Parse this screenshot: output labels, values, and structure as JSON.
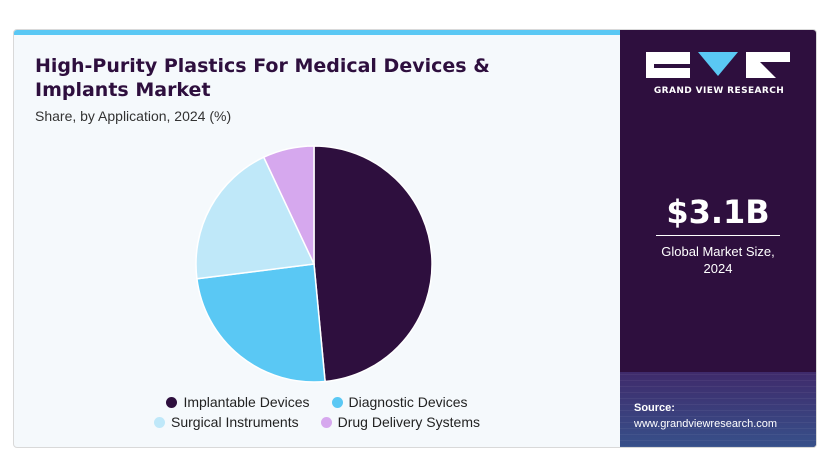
{
  "header": {
    "title": "High-Purity Plastics For Medical Devices & Implants Market",
    "subtitle": "Share, by Application, 2024 (%)"
  },
  "chart_data": {
    "type": "pie",
    "title": "High-Purity Plastics For Medical Devices & Implants Market",
    "subtitle": "Share, by Application, 2024 (%)",
    "categories": [
      "Implantable Devices",
      "Diagnostic Devices",
      "Surgical Instruments",
      "Drug Delivery Systems"
    ],
    "values": [
      48.5,
      24.5,
      20,
      7
    ],
    "colors": [
      "#2e0f3e",
      "#5ac8f4",
      "#bfe8f9",
      "#d6a8ee"
    ],
    "legend_position": "bottom"
  },
  "sidebar": {
    "brand": "GRAND VIEW RESEARCH",
    "market_value": "$3.1B",
    "market_label_line1": "Global Market Size,",
    "market_label_line2": "2024",
    "source_label": "Source:",
    "source_url": "www.grandviewresearch.com",
    "bg_color": "#2e0f3e"
  }
}
